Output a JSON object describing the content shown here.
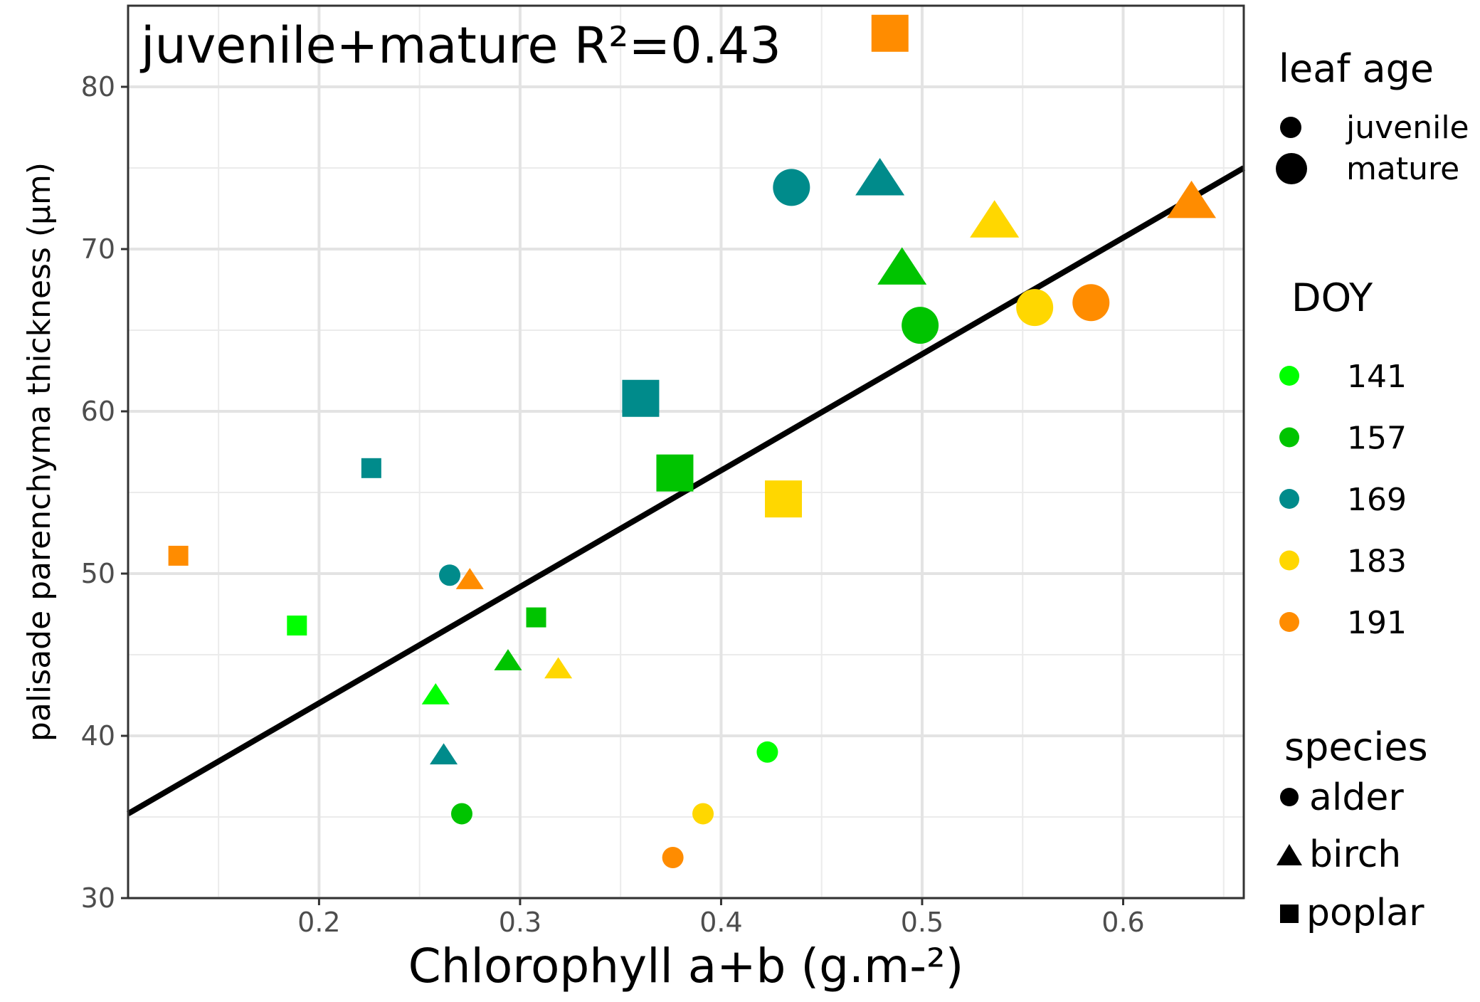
{
  "chart_data": {
    "type": "scatter",
    "xlabel": "Chlorophyll a+b (g.m-²)",
    "ylabel": "palisade parenchyma thickness (µm)",
    "xlim": [
      0.105,
      0.66
    ],
    "ylim": [
      30,
      85
    ],
    "x_ticks": [
      0.2,
      0.3,
      0.4,
      0.5,
      0.6
    ],
    "x_tick_labels": [
      "0.2",
      "0.3",
      "0.4",
      "0.5",
      "0.6"
    ],
    "y_ticks": [
      30,
      40,
      50,
      60,
      70,
      80
    ],
    "y_tick_labels": [
      "30",
      "40",
      "50",
      "60",
      "70",
      "80"
    ],
    "grid": true,
    "annotation": "juvenile+mature R²=0.43",
    "regression_line": {
      "x": [
        0.105,
        0.66
      ],
      "y": [
        35.2,
        75.0
      ]
    },
    "doy_colors": {
      "141": "#00ff00",
      "157": "#00c400",
      "169": "#008b8b",
      "183": "#ffd700",
      "191": "#ff8c00"
    },
    "legends": {
      "leaf_age": {
        "title": "leaf age",
        "items": [
          "juvenile",
          "mature"
        ]
      },
      "doy": {
        "title": "DOY",
        "items": [
          "141",
          "157",
          "169",
          "183",
          "191"
        ]
      },
      "species": {
        "title": "species",
        "items": [
          "alder",
          "birch",
          "poplar"
        ]
      }
    },
    "points": [
      {
        "x": 0.423,
        "y": 39.0,
        "species": "alder",
        "age": "juvenile",
        "doy": "141"
      },
      {
        "x": 0.258,
        "y": 42.5,
        "species": "birch",
        "age": "juvenile",
        "doy": "141"
      },
      {
        "x": 0.189,
        "y": 46.8,
        "species": "poplar",
        "age": "juvenile",
        "doy": "141"
      },
      {
        "x": 0.271,
        "y": 35.2,
        "species": "alder",
        "age": "juvenile",
        "doy": "157"
      },
      {
        "x": 0.294,
        "y": 44.6,
        "species": "birch",
        "age": "juvenile",
        "doy": "157"
      },
      {
        "x": 0.308,
        "y": 47.3,
        "species": "poplar",
        "age": "juvenile",
        "doy": "157"
      },
      {
        "x": 0.265,
        "y": 49.9,
        "species": "alder",
        "age": "juvenile",
        "doy": "169"
      },
      {
        "x": 0.262,
        "y": 38.8,
        "species": "birch",
        "age": "juvenile",
        "doy": "169"
      },
      {
        "x": 0.226,
        "y": 56.5,
        "species": "poplar",
        "age": "juvenile",
        "doy": "169"
      },
      {
        "x": 0.391,
        "y": 35.2,
        "species": "alder",
        "age": "juvenile",
        "doy": "183"
      },
      {
        "x": 0.319,
        "y": 44.1,
        "species": "birch",
        "age": "juvenile",
        "doy": "183"
      },
      {
        "x": 0.376,
        "y": 32.5,
        "species": "alder",
        "age": "juvenile",
        "doy": "191"
      },
      {
        "x": 0.275,
        "y": 49.6,
        "species": "birch",
        "age": "juvenile",
        "doy": "191"
      },
      {
        "x": 0.13,
        "y": 51.1,
        "species": "poplar",
        "age": "juvenile",
        "doy": "191"
      },
      {
        "x": 0.499,
        "y": 65.3,
        "species": "alder",
        "age": "mature",
        "doy": "157"
      },
      {
        "x": 0.49,
        "y": 68.8,
        "species": "birch",
        "age": "mature",
        "doy": "157"
      },
      {
        "x": 0.377,
        "y": 56.2,
        "species": "poplar",
        "age": "mature",
        "doy": "157"
      },
      {
        "x": 0.435,
        "y": 73.8,
        "species": "alder",
        "age": "mature",
        "doy": "169"
      },
      {
        "x": 0.479,
        "y": 74.3,
        "species": "birch",
        "age": "mature",
        "doy": "169"
      },
      {
        "x": 0.36,
        "y": 60.8,
        "species": "poplar",
        "age": "mature",
        "doy": "169"
      },
      {
        "x": 0.556,
        "y": 66.4,
        "species": "alder",
        "age": "mature",
        "doy": "183"
      },
      {
        "x": 0.536,
        "y": 71.7,
        "species": "birch",
        "age": "mature",
        "doy": "183"
      },
      {
        "x": 0.431,
        "y": 54.6,
        "species": "poplar",
        "age": "mature",
        "doy": "183"
      },
      {
        "x": 0.584,
        "y": 66.7,
        "species": "alder",
        "age": "mature",
        "doy": "191"
      },
      {
        "x": 0.634,
        "y": 72.9,
        "species": "birch",
        "age": "mature",
        "doy": "191"
      },
      {
        "x": 0.484,
        "y": 83.3,
        "species": "poplar",
        "age": "mature",
        "doy": "191"
      }
    ]
  }
}
